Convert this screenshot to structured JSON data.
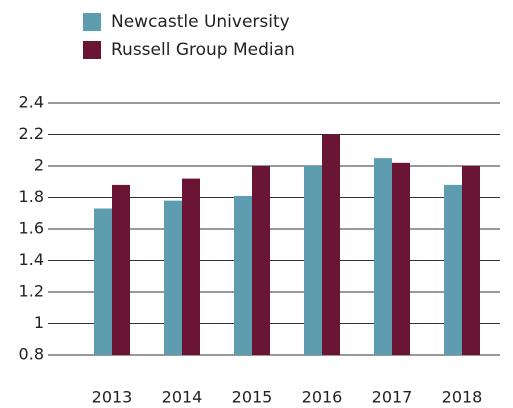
{
  "chart_data": {
    "type": "bar",
    "categories": [
      "2013",
      "2014",
      "2015",
      "2016",
      "2017",
      "2018"
    ],
    "series": [
      {
        "name": "Newcastle University",
        "color": "#5e9cb0",
        "values": [
          1.73,
          1.78,
          1.81,
          2.0,
          2.05,
          1.88
        ]
      },
      {
        "name": "Russell Group Median",
        "color": "#6b1535",
        "values": [
          1.88,
          1.92,
          2.0,
          2.2,
          2.02,
          2.0
        ]
      }
    ],
    "ylim": [
      0.8,
      2.4
    ],
    "yticks": [
      0.8,
      1,
      1.2,
      1.4,
      1.6,
      1.8,
      2,
      2.2,
      2.4
    ],
    "grid": true,
    "legend": "top-left"
  }
}
